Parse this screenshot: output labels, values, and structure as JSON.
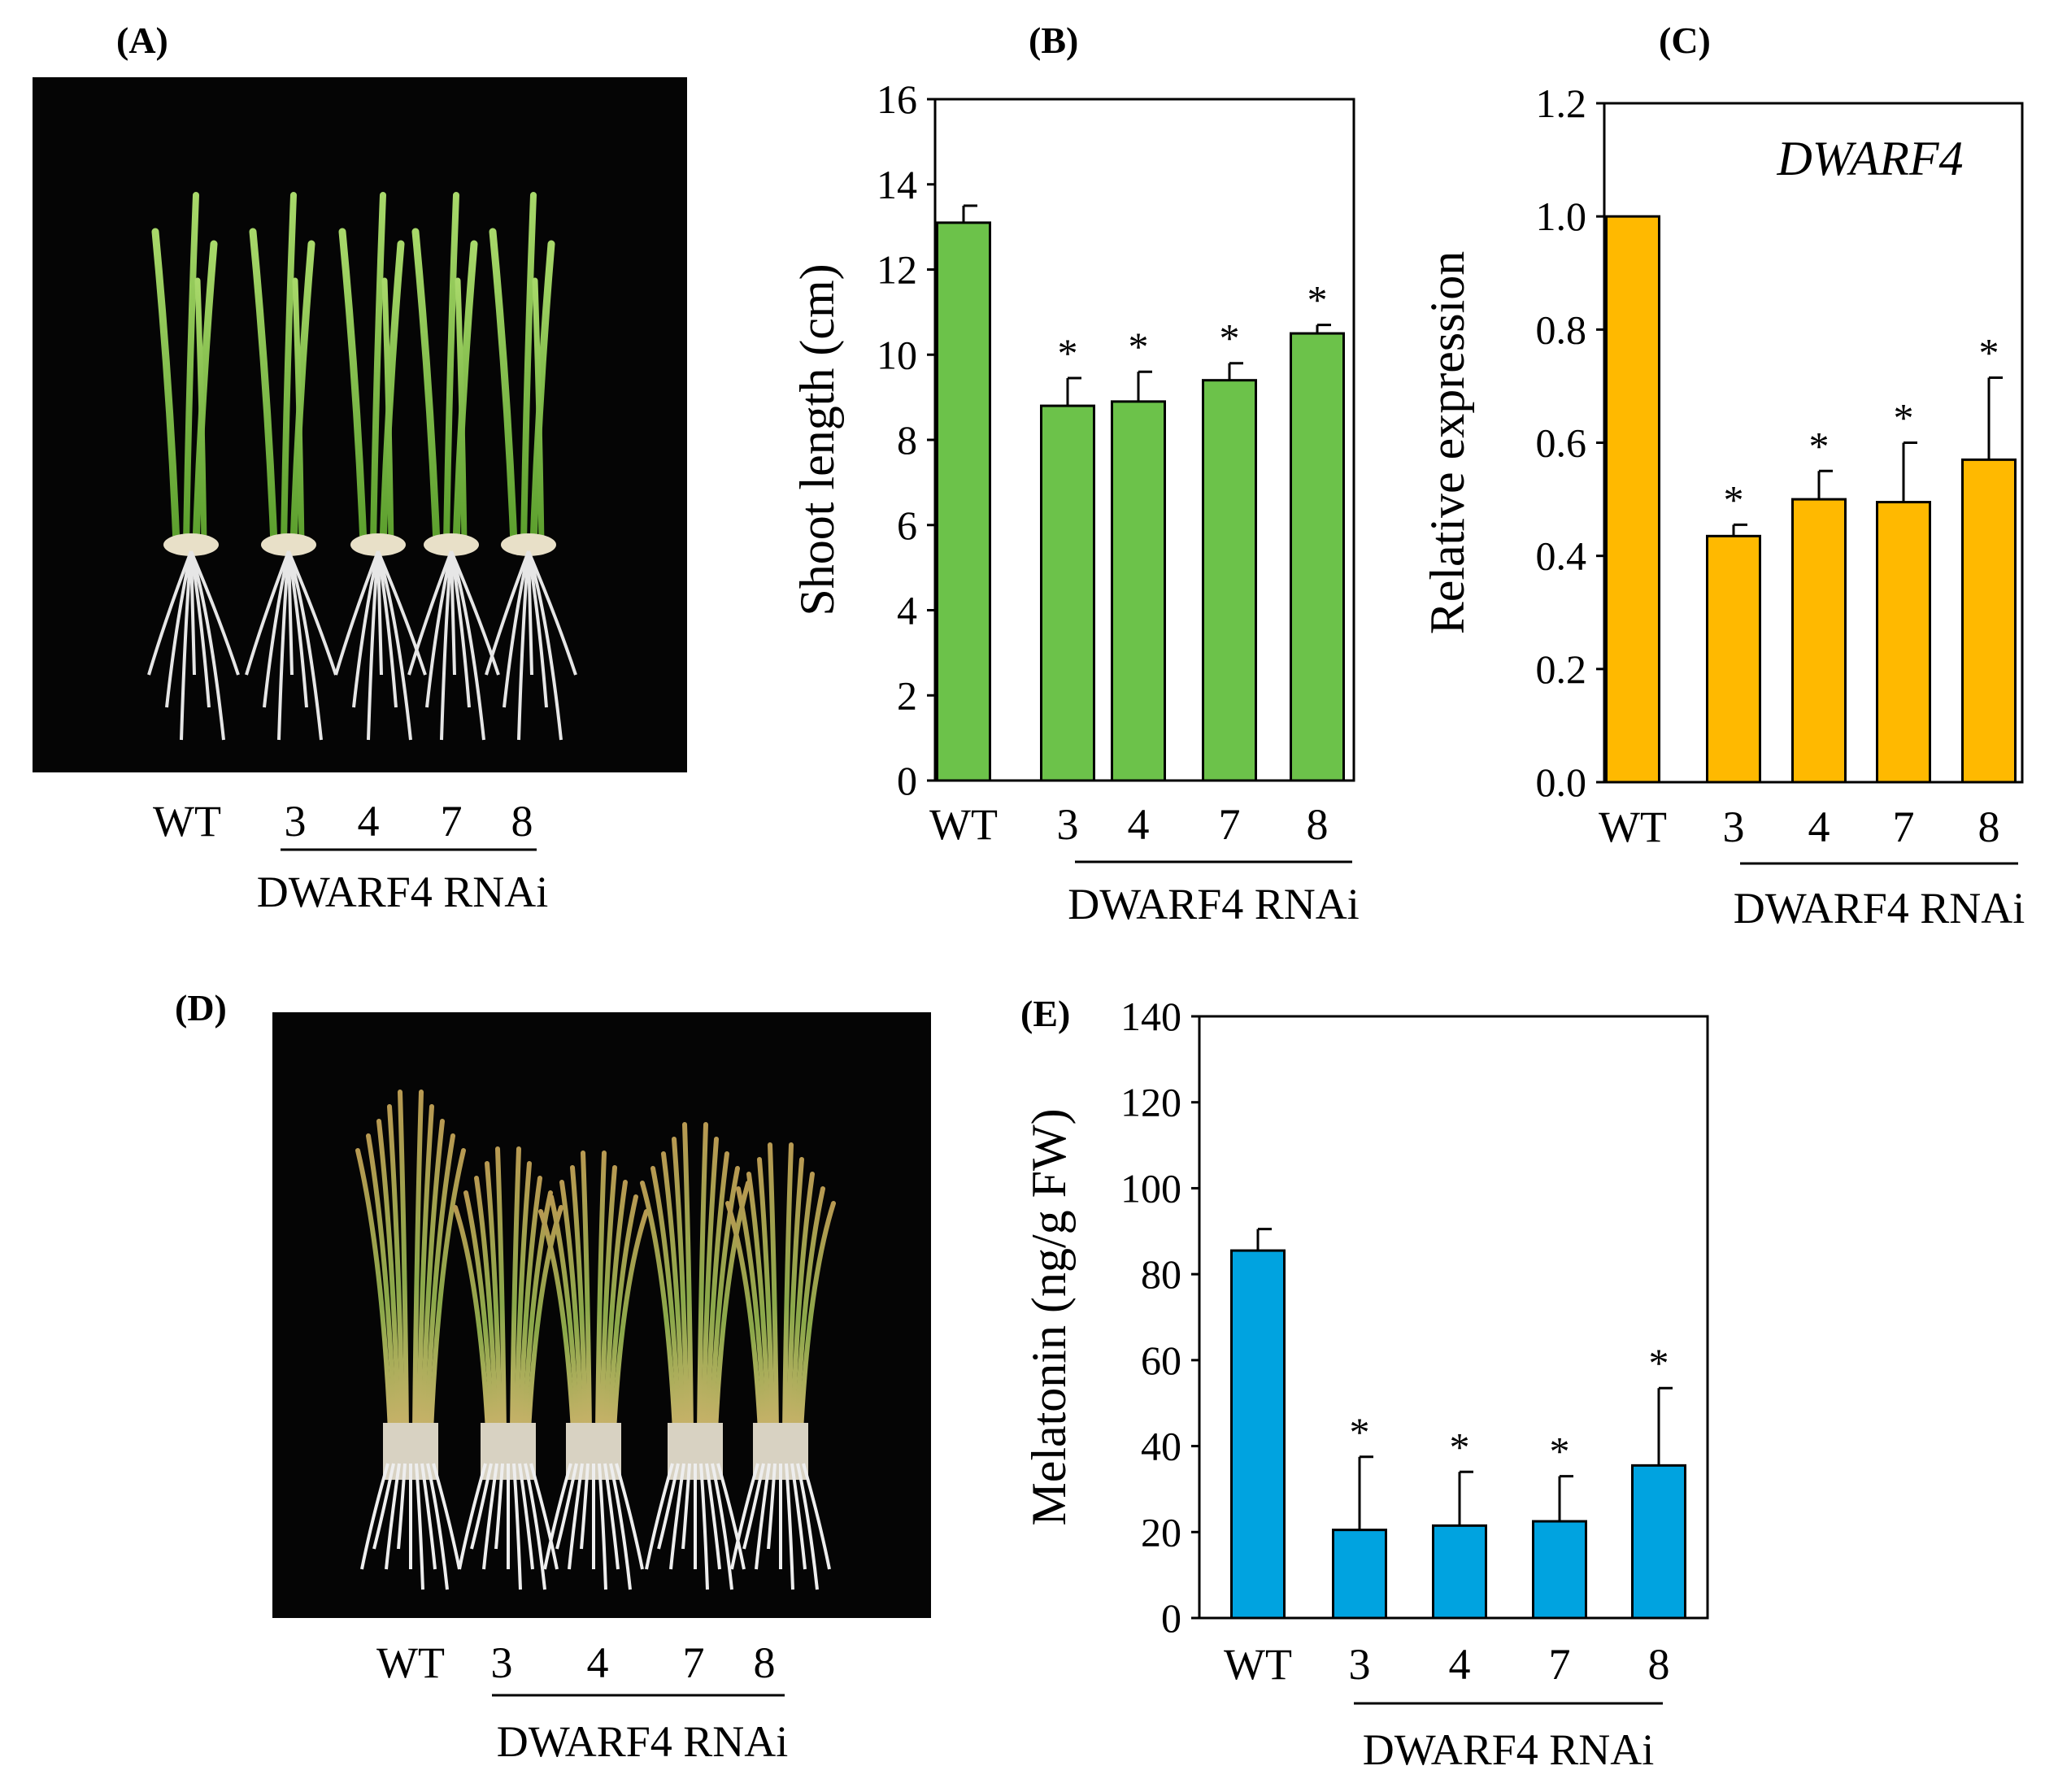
{
  "panels": {
    "A": {
      "label": "(A)",
      "categories": [
        "WT",
        "3",
        "4",
        "7",
        "8"
      ],
      "group_label": "DWARF4 RNAi",
      "photo_description": "rice seedlings on black background"
    },
    "D": {
      "label": "(D)",
      "categories": [
        "WT",
        "3",
        "4",
        "7",
        "8"
      ],
      "group_label": "DWARF4 RNAi",
      "photo_description": "older rice plants on black background"
    }
  },
  "chart_data": [
    {
      "id": "B",
      "label": "(B)",
      "type": "bar",
      "title": "",
      "ylabel": "Shoot length (cm)",
      "xlabel": "",
      "categories": [
        "WT",
        "3",
        "4",
        "7",
        "8"
      ],
      "values": [
        13.1,
        8.8,
        8.9,
        9.4,
        10.5
      ],
      "errors": [
        0.4,
        0.65,
        0.7,
        0.4,
        0.2
      ],
      "significance": [
        "",
        "*",
        "*",
        "*",
        "*"
      ],
      "ylim": [
        0,
        16
      ],
      "yticks": [
        0,
        2,
        4,
        6,
        8,
        10,
        12,
        14,
        16
      ],
      "ytick_labels": [
        "0",
        "2",
        "4",
        "6",
        "8",
        "10",
        "12",
        "14",
        "16"
      ],
      "group_label": "DWARF4 RNAi",
      "color": "#6cc24a",
      "annotation": ""
    },
    {
      "id": "C",
      "label": "(C)",
      "type": "bar",
      "title": "",
      "ylabel": "Relative expression",
      "xlabel": "",
      "categories": [
        "WT",
        "3",
        "4",
        "7",
        "8"
      ],
      "values": [
        1.0,
        0.435,
        0.5,
        0.495,
        0.57
      ],
      "errors": [
        0.0,
        0.02,
        0.05,
        0.105,
        0.145
      ],
      "significance": [
        "",
        "*",
        "*",
        "*",
        "*"
      ],
      "ylim": [
        0,
        1.2
      ],
      "yticks": [
        0,
        0.2,
        0.4,
        0.6,
        0.8,
        1.0,
        1.2
      ],
      "ytick_labels": [
        "0.0",
        "0.2",
        "0.4",
        "0.6",
        "0.8",
        "1.0",
        "1.2"
      ],
      "group_label": "DWARF4 RNAi",
      "color": "#ffb900",
      "annotation": "DWARF4"
    },
    {
      "id": "E",
      "label": "(E)",
      "type": "bar",
      "title": "",
      "ylabel": "Melatonin (ng/g FW)",
      "xlabel": "",
      "categories": [
        "WT",
        "3",
        "4",
        "7",
        "8"
      ],
      "values": [
        85.5,
        20.5,
        21.5,
        22.5,
        35.5
      ],
      "errors": [
        5.0,
        17.0,
        12.5,
        10.5,
        18.0
      ],
      "significance": [
        "",
        "*",
        "*",
        "*",
        "*"
      ],
      "ylim": [
        0,
        140
      ],
      "yticks": [
        0,
        20,
        40,
        60,
        80,
        100,
        120,
        140
      ],
      "ytick_labels": [
        "0",
        "20",
        "40",
        "60",
        "80",
        "100",
        "120",
        "140"
      ],
      "group_label": "DWARF4 RNAi",
      "color": "#00a3e0",
      "annotation": ""
    }
  ]
}
